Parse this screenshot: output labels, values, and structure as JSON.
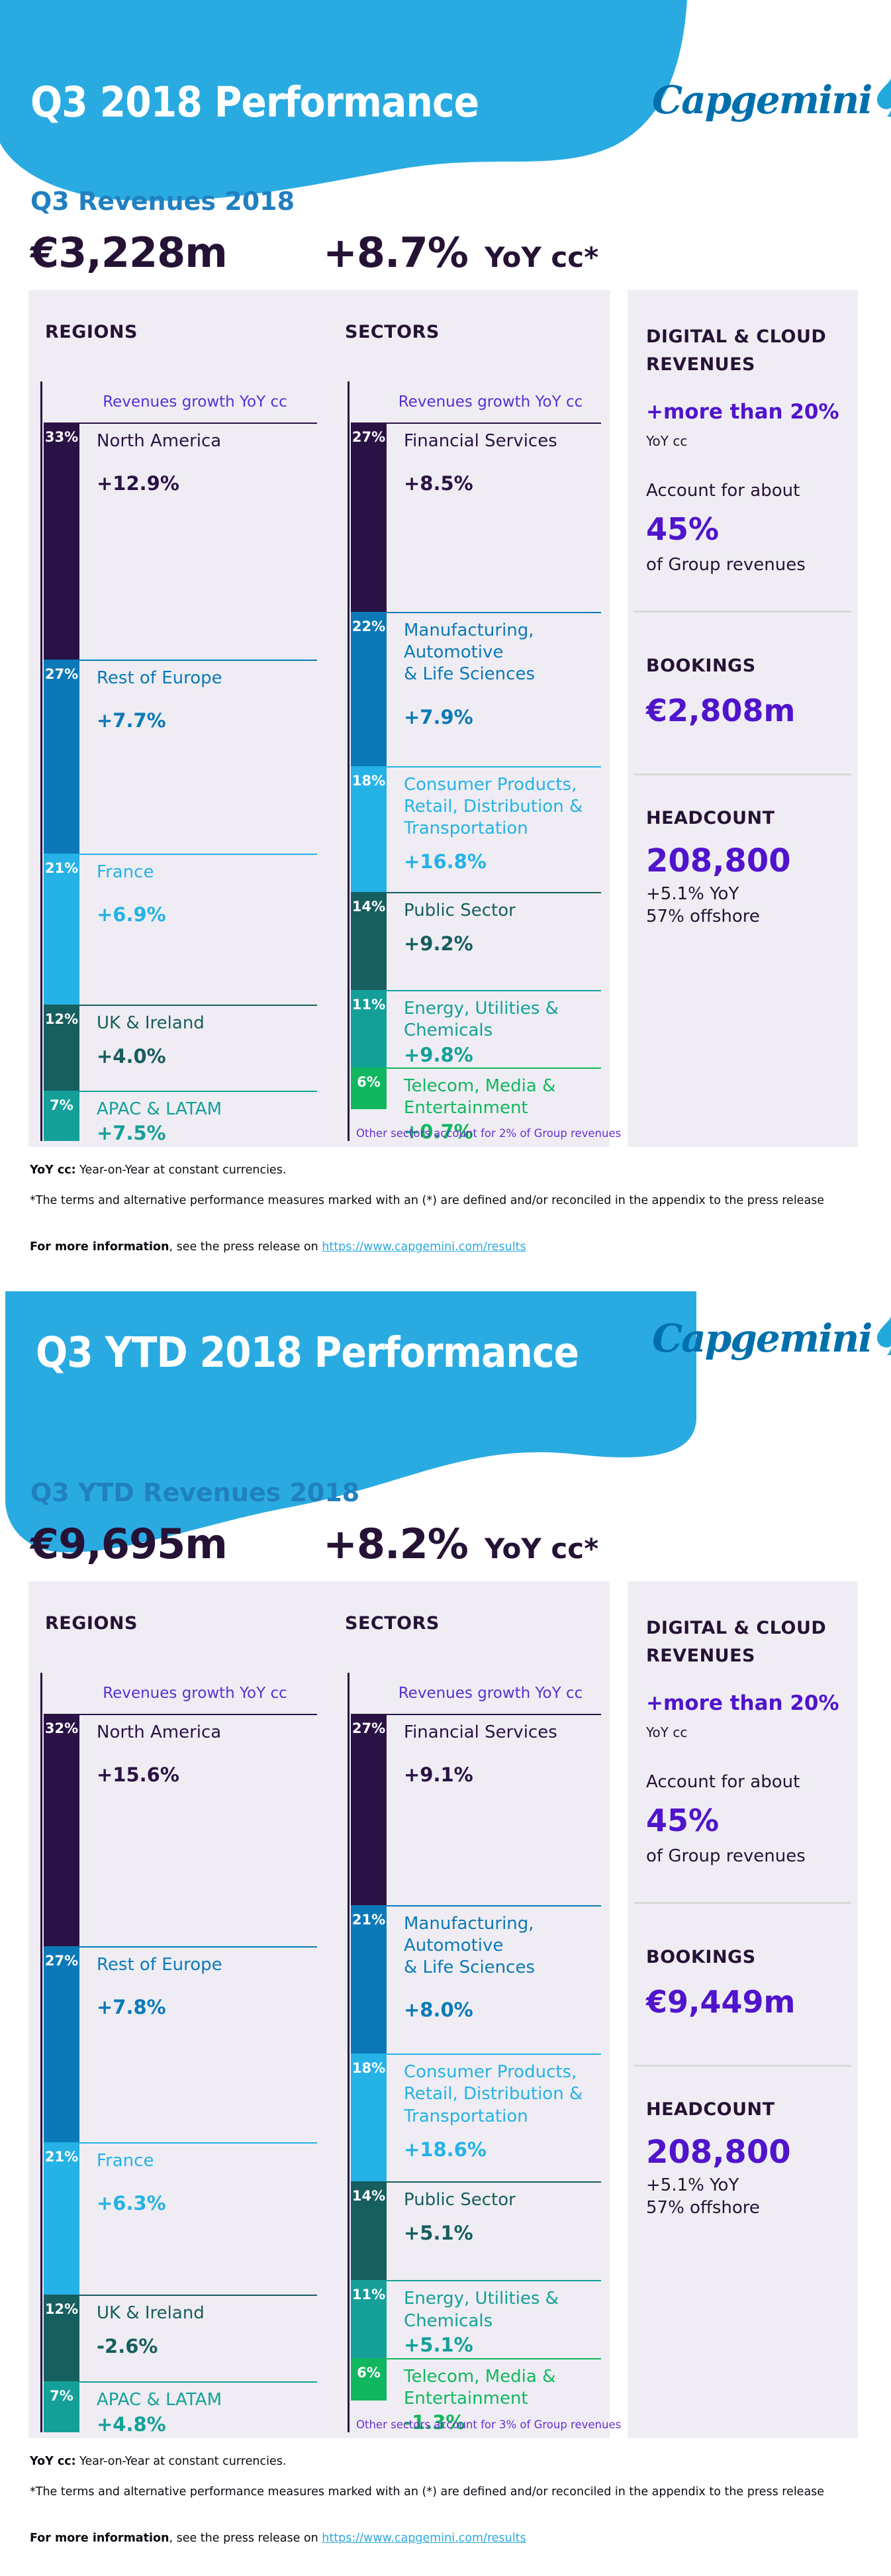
{
  "brand": {
    "logo_text": "Capgemini",
    "banner_color": "#29abe2",
    "logo_color": "#0070ad",
    "accent_purple": "#5014cc",
    "panel_color": "#efedf3"
  },
  "sections": [
    {
      "id": "q3-2018",
      "banner_title": "Q3 2018 Performance",
      "revenue_heading": "Q3 Revenues 2018",
      "revenue_value": "€3,228m",
      "revenue_growth": "+8.7%",
      "revenue_growth_unit": "YoY cc*",
      "regions": {
        "title": "REGIONS",
        "axis_label": "Revenues growth YoY cc",
        "items": [
          {
            "share_label": "33%",
            "share": 33,
            "name": "North America",
            "growth": "+12.9%",
            "color": "#2a1245"
          },
          {
            "share_label": "27%",
            "share": 27,
            "name": "Rest of Europe",
            "growth": "+7.7%",
            "color": "#0b79b8"
          },
          {
            "share_label": "21%",
            "share": 21,
            "name": "France",
            "growth": "+6.9%",
            "color": "#25b2e6"
          },
          {
            "share_label": "12%",
            "share": 12,
            "name": "UK & Ireland",
            "growth": "+4.0%",
            "color": "#175e5f"
          },
          {
            "share_label": "7%",
            "share": 7,
            "name": "APAC & LATAM",
            "growth": "+7.5%",
            "color": "#14a099"
          }
        ]
      },
      "sectors": {
        "title": "SECTORS",
        "axis_label": "Revenues growth YoY cc",
        "note": "Other sectors account for 2% of Group revenues",
        "items": [
          {
            "share_label": "27%",
            "share": 27,
            "name": "Financial Services",
            "growth": "+8.5%",
            "color": "#2a1245"
          },
          {
            "share_label": "22%",
            "share": 22,
            "name": "Manufacturing,\nAutomotive\n& Life Sciences",
            "growth": "+7.9%",
            "color": "#0b79b8"
          },
          {
            "share_label": "18%",
            "share": 18,
            "name": "Consumer Products,\nRetail, Distribution &\nTransportation",
            "growth": "+16.8%",
            "color": "#25b2e6"
          },
          {
            "share_label": "14%",
            "share": 14,
            "name": "Public Sector",
            "growth": "+9.2%",
            "color": "#175e5f"
          },
          {
            "share_label": "11%",
            "share": 11,
            "name": "Energy, Utilities &\nChemicals",
            "growth": "+9.8%",
            "color": "#14a099"
          },
          {
            "share_label": "6%",
            "share": 6,
            "name": "Telecom, Media &\nEntertainment",
            "growth": "+0.7%",
            "color": "#10b75f"
          }
        ]
      },
      "kpis": {
        "digital_title": "DIGITAL & CLOUD REVENUES",
        "digital_growth": "+more than 20%",
        "digital_growth_unit": "YoY cc",
        "digital_account": "Account for about",
        "digital_share": "45%",
        "digital_share_unit": "of Group revenues",
        "bookings_title": "BOOKINGS",
        "bookings_value": "€2,808m",
        "headcount_title": "HEADCOUNT",
        "headcount_value": "208,800",
        "headcount_line1": "+5.1% YoY",
        "headcount_line2": "57% offshore"
      },
      "footnotes": {
        "yoy_bold": "YoY cc:",
        "yoy_rest": " Year-on-Year at constant currencies.",
        "terms": "*The terms and alternative performance measures marked with an (*) are defined and/or reconciled in the appendix to the press release",
        "more_bold": "For more information",
        "more_rest": ", see the press release on ",
        "more_link": "https://www.capgemini.com/results"
      }
    },
    {
      "id": "q3-ytd-2018",
      "banner_title": "Q3 YTD 2018 Performance",
      "revenue_heading": "Q3 YTD Revenues 2018",
      "revenue_value": "€9,695m",
      "revenue_growth": "+8.2%",
      "revenue_growth_unit": "YoY cc*",
      "regions": {
        "title": "REGIONS",
        "axis_label": "Revenues growth YoY cc",
        "items": [
          {
            "share_label": "32%",
            "share": 32,
            "name": "North America",
            "growth": "+15.6%",
            "color": "#2a1245"
          },
          {
            "share_label": "27%",
            "share": 27,
            "name": "Rest of Europe",
            "growth": "+7.8%",
            "color": "#0b79b8"
          },
          {
            "share_label": "21%",
            "share": 21,
            "name": "France",
            "growth": "+6.3%",
            "color": "#25b2e6"
          },
          {
            "share_label": "12%",
            "share": 12,
            "name": "UK & Ireland",
            "growth": "-2.6%",
            "color": "#175e5f"
          },
          {
            "share_label": "7%",
            "share": 7,
            "name": "APAC & LATAM",
            "growth": "+4.8%",
            "color": "#14a099"
          }
        ]
      },
      "sectors": {
        "title": "SECTORS",
        "axis_label": "Revenues growth YoY cc",
        "note": "Other sectors account for 3% of Group revenues",
        "items": [
          {
            "share_label": "27%",
            "share": 27,
            "name": "Financial Services",
            "growth": "+9.1%",
            "color": "#2a1245"
          },
          {
            "share_label": "21%",
            "share": 21,
            "name": "Manufacturing,\nAutomotive\n& Life Sciences",
            "growth": "+8.0%",
            "color": "#0b79b8"
          },
          {
            "share_label": "18%",
            "share": 18,
            "name": "Consumer Products,\nRetail, Distribution &\nTransportation",
            "growth": "+18.6%",
            "color": "#25b2e6"
          },
          {
            "share_label": "14%",
            "share": 14,
            "name": "Public Sector",
            "growth": "+5.1%",
            "color": "#175e5f"
          },
          {
            "share_label": "11%",
            "share": 11,
            "name": "Energy, Utilities &\nChemicals",
            "growth": "+5.1%",
            "color": "#14a099"
          },
          {
            "share_label": "6%",
            "share": 6,
            "name": "Telecom, Media &\nEntertainment",
            "growth": "-1.3%",
            "color": "#10b75f"
          }
        ]
      },
      "kpis": {
        "digital_title": "DIGITAL & CLOUD REVENUES",
        "digital_growth": "+more than 20%",
        "digital_growth_unit": "YoY cc",
        "digital_account": "Account for about",
        "digital_share": "45%",
        "digital_share_unit": "of Group revenues",
        "bookings_title": "BOOKINGS",
        "bookings_value": "€9,449m",
        "headcount_title": "HEADCOUNT",
        "headcount_value": "208,800",
        "headcount_line1": "+5.1% YoY",
        "headcount_line2": "57% offshore"
      },
      "footnotes": {
        "yoy_bold": "YoY cc:",
        "yoy_rest": " Year-on-Year at constant currencies.",
        "terms": "*The terms and alternative performance measures marked with an (*) are defined and/or reconciled in the appendix to the press release",
        "more_bold": "For more information",
        "more_rest": ", see the press release on ",
        "more_link": "https://www.capgemini.com/results"
      }
    }
  ],
  "chart_data": [
    {
      "type": "bar",
      "title": "Q3 2018 revenues by region (share of revenues %, growth YoY cc %)",
      "categories": [
        "North America",
        "Rest of Europe",
        "France",
        "UK & Ireland",
        "APAC & LATAM"
      ],
      "series": [
        {
          "name": "share_of_revenues_pct",
          "values": [
            33,
            27,
            21,
            12,
            7
          ]
        },
        {
          "name": "growth_yoy_cc_pct",
          "values": [
            12.9,
            7.7,
            6.9,
            4.0,
            7.5
          ]
        }
      ],
      "xlabel": "",
      "ylabel": "Revenues growth YoY cc",
      "legend": false,
      "grid": false
    },
    {
      "type": "bar",
      "title": "Q3 2018 revenues by sector (share of revenues %, growth YoY cc %)",
      "categories": [
        "Financial Services",
        "Manufacturing, Automotive & Life Sciences",
        "Consumer Products, Retail, Distribution & Transportation",
        "Public Sector",
        "Energy, Utilities & Chemicals",
        "Telecom, Media & Entertainment"
      ],
      "series": [
        {
          "name": "share_of_revenues_pct",
          "values": [
            27,
            22,
            18,
            14,
            11,
            6
          ]
        },
        {
          "name": "growth_yoy_cc_pct",
          "values": [
            8.5,
            7.9,
            16.8,
            9.2,
            9.8,
            0.7
          ]
        }
      ],
      "annotation": "Other sectors account for 2% of Group revenues",
      "xlabel": "",
      "ylabel": "Revenues growth YoY cc",
      "legend": false,
      "grid": false
    },
    {
      "type": "bar",
      "title": "Q3 YTD 2018 revenues by region (share of revenues %, growth YoY cc %)",
      "categories": [
        "North America",
        "Rest of Europe",
        "France",
        "UK & Ireland",
        "APAC & LATAM"
      ],
      "series": [
        {
          "name": "share_of_revenues_pct",
          "values": [
            32,
            27,
            21,
            12,
            7
          ]
        },
        {
          "name": "growth_yoy_cc_pct",
          "values": [
            15.6,
            7.8,
            6.3,
            -2.6,
            4.8
          ]
        }
      ],
      "xlabel": "",
      "ylabel": "Revenues growth YoY cc",
      "legend": false,
      "grid": false
    },
    {
      "type": "bar",
      "title": "Q3 YTD 2018 revenues by sector (share of revenues %, growth YoY cc %)",
      "categories": [
        "Financial Services",
        "Manufacturing, Automotive & Life Sciences",
        "Consumer Products, Retail, Distribution & Transportation",
        "Public Sector",
        "Energy, Utilities & Chemicals",
        "Telecom, Media & Entertainment"
      ],
      "series": [
        {
          "name": "share_of_revenues_pct",
          "values": [
            27,
            21,
            18,
            14,
            11,
            6
          ]
        },
        {
          "name": "growth_yoy_cc_pct",
          "values": [
            9.1,
            8.0,
            18.6,
            5.1,
            5.1,
            -1.3
          ]
        }
      ],
      "annotation": "Other sectors account for 3% of Group revenues",
      "xlabel": "",
      "ylabel": "Revenues growth YoY cc",
      "legend": false,
      "grid": false
    }
  ]
}
